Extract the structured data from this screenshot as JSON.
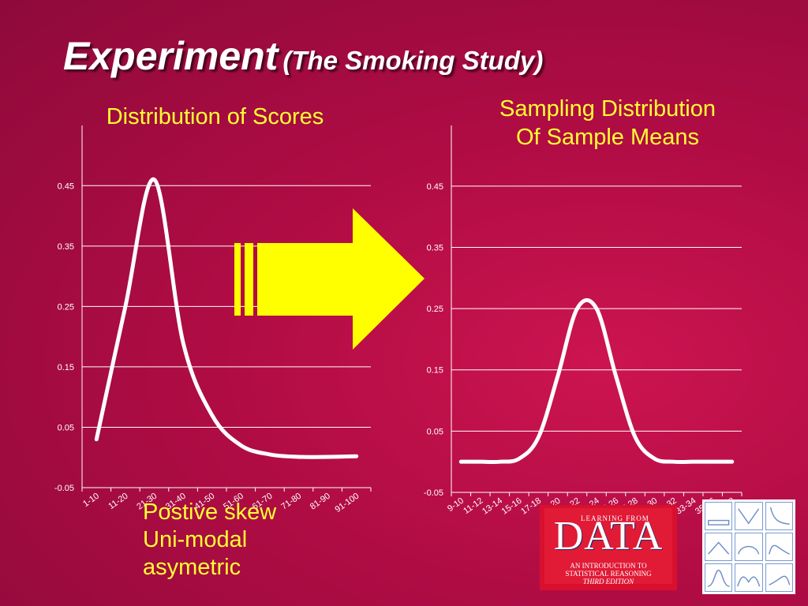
{
  "slide": {
    "title_main": "Experiment",
    "title_sub": "(The Smoking Study)"
  },
  "left_chart_title": "Distribution of Scores",
  "right_chart_title": [
    "Sampling Distribution",
    "Of Sample Means"
  ],
  "notes": [
    "Postive skew",
    "Uni-modal",
    "asymetric"
  ],
  "logo": {
    "top": "LEARNING FROM",
    "big": "DATA",
    "line1": "AN INTRODUCTION TO",
    "line2": "STATISTICAL REASONING",
    "edition": "THIRD EDITION"
  },
  "colors": {
    "background": "#b00c44",
    "title_text": "#ffffff",
    "caption_text": "#ffff33",
    "curve": "#ffffff",
    "arrow": "#ffff00"
  },
  "arrow_icon": "right-arrow-icon",
  "chart_data": [
    {
      "type": "line",
      "title": "Distribution of Scores",
      "categories": [
        "1-10",
        "11-20",
        "21-30",
        "31-40",
        "41-50",
        "51-60",
        "61-70",
        "71-80",
        "81-90",
        "91-100"
      ],
      "values": [
        0.03,
        0.25,
        0.46,
        0.19,
        0.07,
        0.02,
        0.005,
        0.001,
        0.001,
        0.002
      ],
      "y_ticks": [
        "0.45",
        "0.35",
        "0.25",
        "0.15",
        "0.05",
        "-0.05"
      ],
      "ylim": [
        -0.05,
        0.5
      ],
      "grid": true,
      "smooth": true
    },
    {
      "type": "line",
      "title": "Sampling Distribution Of Sample Means",
      "categories": [
        "9-10",
        "11-12",
        "13-14",
        "15-16",
        "17-18",
        "19-20",
        "21-22",
        "23-24",
        "25-26",
        "27-28",
        "29-30",
        "31-32",
        "33-34",
        "35-36",
        "37-38"
      ],
      "values": [
        0.0,
        0.0,
        0.0,
        0.005,
        0.04,
        0.14,
        0.25,
        0.25,
        0.14,
        0.04,
        0.005,
        0.0,
        0.0,
        0.0,
        0.0
      ],
      "y_ticks": [
        "0.45",
        "0.35",
        "0.25",
        "0.15",
        "0.05",
        "-0.05"
      ],
      "ylim": [
        -0.05,
        0.5
      ],
      "grid": true,
      "smooth": true
    }
  ]
}
